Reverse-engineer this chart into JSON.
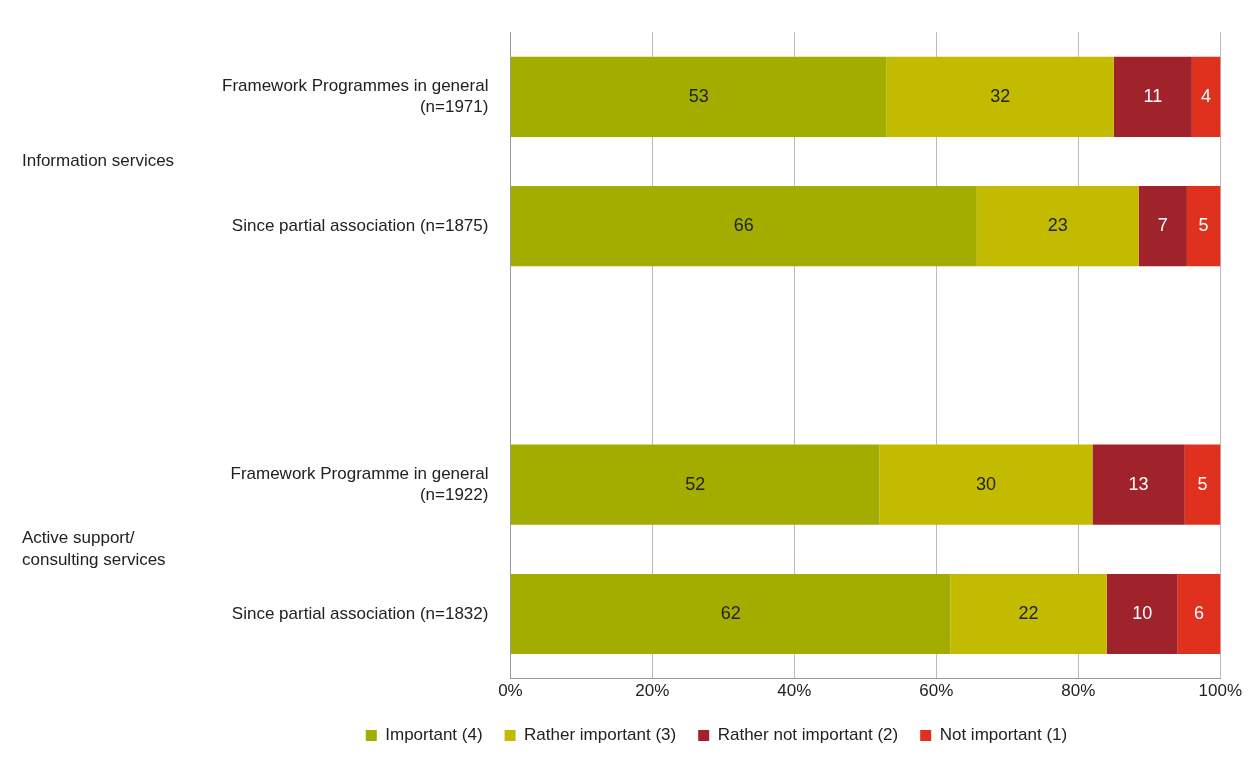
{
  "chart_data": {
    "type": "bar",
    "orientation": "horizontal",
    "stacked": true,
    "categories": [
      "Framework Programmes in general (n=1971)",
      "Since partial association (n=1875)",
      null,
      "Framework Programme in general (n=1922)",
      "Since partial association (n=1832)"
    ],
    "series": [
      {
        "name": "Important (4)",
        "color": "#a3ad00",
        "values": [
          53,
          65.7,
          null,
          52,
          62
        ],
        "value_labels": [
          "53",
          "66",
          null,
          "52",
          "62"
        ]
      },
      {
        "name": "Rather important (3)",
        "color": "#c3bb00",
        "values": [
          32,
          22.8,
          null,
          30,
          22
        ],
        "value_labels": [
          "32",
          "23",
          null,
          "30",
          "22"
        ]
      },
      {
        "name": "Rather not important (2)",
        "color": "#a0222a",
        "values": [
          11,
          6.8,
          null,
          13,
          10
        ],
        "value_labels": [
          "11",
          "7",
          null,
          "13",
          "10"
        ]
      },
      {
        "name": "Not important (1)",
        "color": "#e0301e",
        "values": [
          4,
          4.7,
          null,
          5,
          6
        ],
        "value_labels": [
          "4",
          "5",
          null,
          "5",
          "6"
        ]
      }
    ],
    "xlim": [
      0,
      100
    ],
    "xticks": [
      {
        "value": 0,
        "label": "0%"
      },
      {
        "value": 20,
        "label": "20%"
      },
      {
        "value": 40,
        "label": "40%"
      },
      {
        "value": 60,
        "label": "60%"
      },
      {
        "value": 80,
        "label": "80%"
      },
      {
        "value": 100,
        "label": "100%"
      }
    ],
    "annotations": [
      "Information services",
      "Active support/ consulting services"
    ],
    "grid": "x",
    "legend": "bottom"
  }
}
